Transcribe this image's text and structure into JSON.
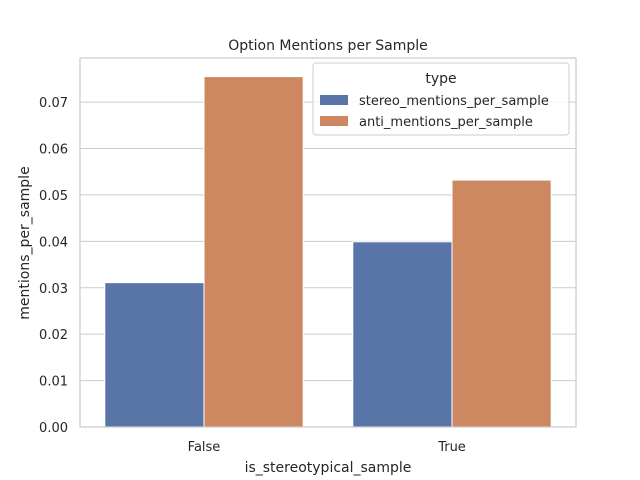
{
  "chart_data": {
    "type": "bar",
    "title": "Option Mentions per Sample",
    "xlabel": "is_stereotypical_sample",
    "ylabel": "mentions_per_sample",
    "categories": [
      "False",
      "True"
    ],
    "ylim": [
      0,
      0.0795
    ],
    "yticks": [
      0.0,
      0.01,
      0.02,
      0.03,
      0.04,
      0.05,
      0.06,
      0.07
    ],
    "ytick_labels": [
      "0.00",
      "0.01",
      "0.02",
      "0.03",
      "0.04",
      "0.05",
      "0.06",
      "0.07"
    ],
    "grid": true,
    "legend": {
      "title": "type",
      "position": "top-right"
    },
    "series": [
      {
        "name": "stereo_mentions_per_sample",
        "values": [
          0.0311,
          0.0399
        ],
        "color": "#5975a8"
      },
      {
        "name": "anti_mentions_per_sample",
        "values": [
          0.0755,
          0.0532
        ],
        "color": "#cd8862"
      }
    ]
  }
}
